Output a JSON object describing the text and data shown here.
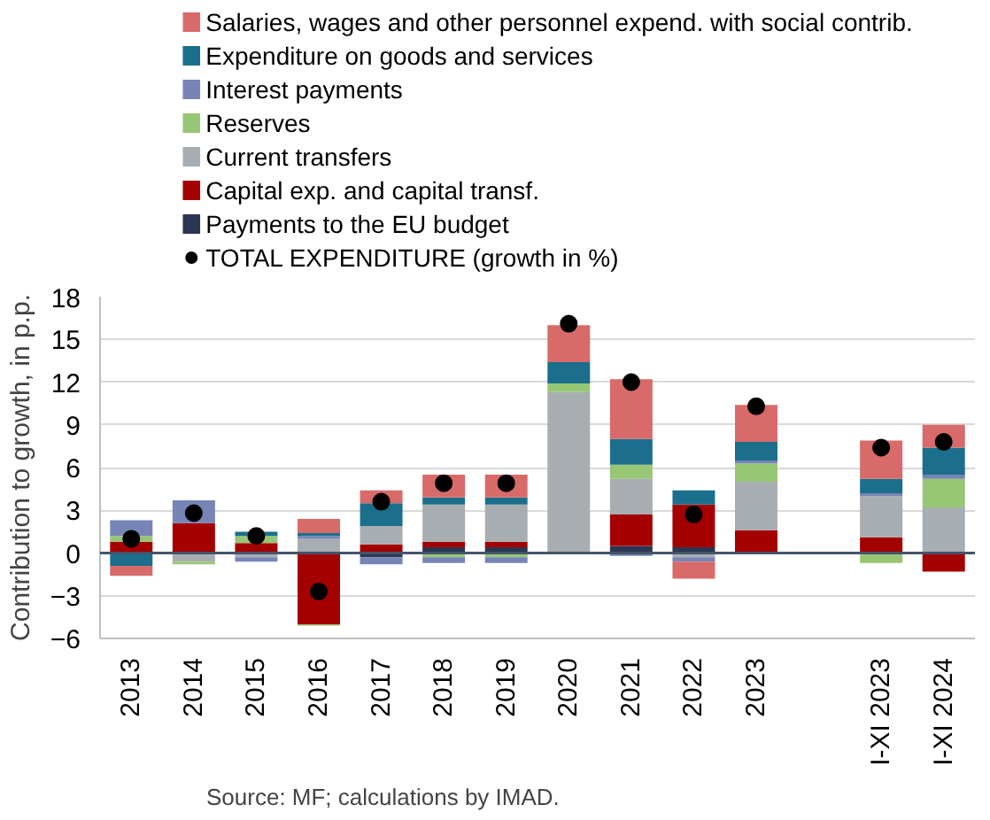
{
  "chart_data": {
    "type": "bar",
    "stacked": true,
    "categories": [
      "2013",
      "2014",
      "2015",
      "2016",
      "2017",
      "2018",
      "2019",
      "2020",
      "2021",
      "2022",
      "2023",
      null,
      "I-XI 2023",
      "I-XI 2024"
    ],
    "series": [
      {
        "name": "Payments to the EU budget",
        "color": "#2c3551",
        "values": [
          0,
          0,
          0,
          0,
          -0.3,
          0.4,
          0.4,
          0,
          0.5,
          0.4,
          -0.1,
          null,
          -0.1,
          0
        ]
      },
      {
        "name": "Capital exp. and capital transf.",
        "color": "#a50000",
        "values": [
          0.8,
          2.1,
          0.7,
          -5.0,
          0.6,
          0.4,
          0.4,
          0.1,
          2.2,
          3.0,
          1.6,
          null,
          1.1,
          -1.3
        ]
      },
      {
        "name": "Current transfers",
        "color": "#a8adb2",
        "values": [
          0,
          -0.6,
          -0.3,
          1.0,
          1.3,
          2.6,
          2.6,
          11.2,
          2.5,
          -0.3,
          3.4,
          null,
          2.9,
          3.2
        ]
      },
      {
        "name": "Reserves",
        "color": "#97c675",
        "values": [
          0.4,
          -0.2,
          0.5,
          -0.1,
          0,
          -0.3,
          -0.3,
          0.6,
          1.0,
          0,
          1.3,
          null,
          -0.6,
          2.0
        ]
      },
      {
        "name": "Interest payments",
        "color": "#7685b5",
        "values": [
          1.1,
          1.6,
          -0.3,
          0.2,
          -0.5,
          -0.4,
          -0.4,
          0,
          -0.2,
          -0.3,
          0.2,
          null,
          0.2,
          0.3
        ]
      },
      {
        "name": "Expenditure on goods and services",
        "color": "#1b6f8c",
        "values": [
          -0.9,
          0,
          0.3,
          0.2,
          1.6,
          0.5,
          0.5,
          1.5,
          1.8,
          1.0,
          1.3,
          null,
          1.0,
          1.9
        ]
      },
      {
        "name": "Salaries, wages and other personnel expend. with social contrib.",
        "color": "#d86a6a",
        "values": [
          -0.7,
          0,
          0,
          1.0,
          0.9,
          1.6,
          1.6,
          2.6,
          4.2,
          -1.2,
          2.6,
          null,
          2.7,
          1.6
        ]
      },
      {
        "name": "TOTAL EXPENDITURE (growth in %)",
        "type": "scatter",
        "color": "#000000",
        "values": [
          1.0,
          2.8,
          1.2,
          -2.7,
          3.6,
          4.9,
          4.9,
          16.1,
          12.0,
          2.7,
          10.3,
          null,
          7.4,
          7.8
        ]
      }
    ],
    "ylim": [
      -6,
      18
    ],
    "yticks": [
      -6,
      -3,
      0,
      3,
      6,
      9,
      12,
      15,
      18
    ],
    "ylabel": "Contribution to growth, in p.p.",
    "grid": "y",
    "legend": "top",
    "marker": "circle",
    "ref_lines": [
      {
        "axis": "y",
        "value": 0,
        "color": "#44546a"
      }
    ],
    "annotations": [
      "Source: MF; calculations by IMAD."
    ]
  }
}
